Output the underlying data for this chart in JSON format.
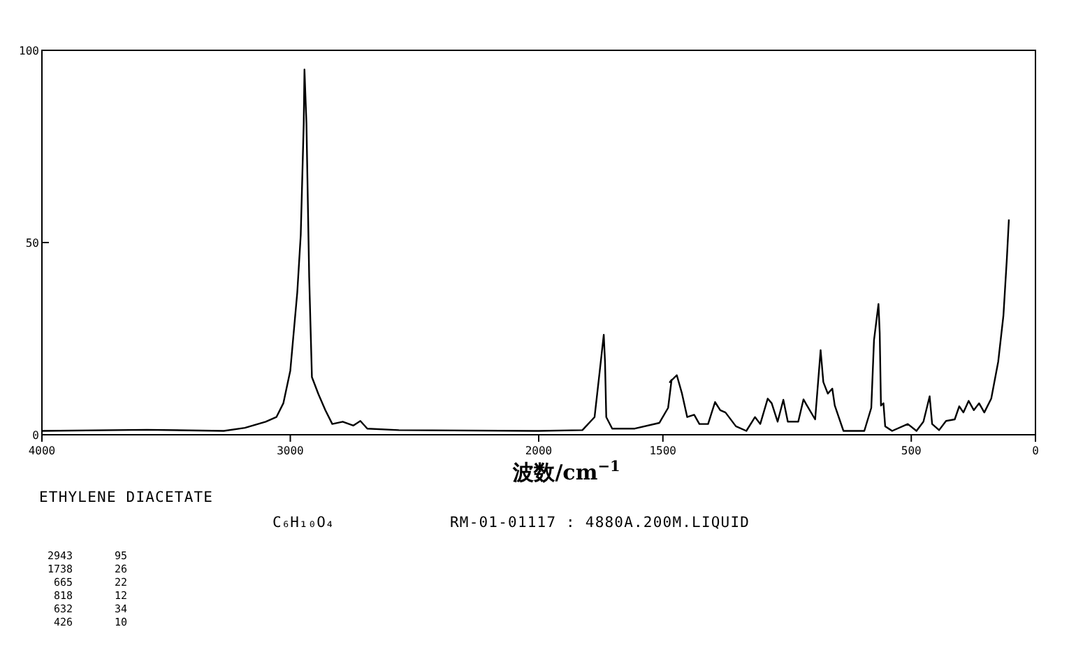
{
  "chart_data": {
    "type": "line",
    "title": "ETHYLENE DIACETATE",
    "subtitle": "C₆H₁₀O₄",
    "xlabel": "波数/cm$^{−1}$",
    "annotations": [
      "RM-01-01117 : 4880A.200M.LIQUID",
      "2943 95",
      "1738 26",
      "665 22",
      "818 12",
      "632 34",
      "426 10"
    ],
    "xlim": [
      4000,
      0
    ],
    "ylim": [
      0,
      100
    ],
    "xticks": [
      4000,
      3000,
      2000,
      1500,
      500,
      0
    ],
    "yticks": [
      0,
      50,
      100
    ],
    "grid": false,
    "marker": "none",
    "line_style": "solid",
    "series": [
      {
        "color": "#000000",
        "x": [
          4000,
          3577,
          3268,
          3183,
          3099,
          3056,
          3028,
          3000,
          2972,
          2958,
          2946,
          2943,
          2935,
          2924,
          2913,
          2887,
          2859,
          2831,
          2789,
          2746,
          2718,
          2690,
          2563,
          2000,
          1824,
          1775,
          1754,
          1738,
          1733,
          1728,
          1704,
          1613,
          1514,
          1479,
          1465,
          1472,
          1444,
          1423,
          1402,
          1374,
          1353,
          1318,
          1290,
          1269,
          1248,
          1206,
          1164,
          1129,
          1108,
          1078,
          1062,
          1038,
          1015,
          997,
          955,
          934,
          920,
          887,
          865,
          854,
          836,
          818,
          808,
          773,
          689,
          661,
          650,
          632,
          627,
          622,
          612,
          605,
          577,
          514,
          479,
          451,
          426,
          416,
          388,
          360,
          325,
          307,
          290,
          269,
          248,
          227,
          206,
          178,
          150,
          129,
          115,
          107
        ],
        "values": [
          1.0,
          1.3,
          1.0,
          1.8,
          3.4,
          4.6,
          8.2,
          16.7,
          37,
          52,
          81,
          95,
          81,
          41,
          15,
          10.6,
          6.4,
          2.8,
          3.4,
          2.4,
          3.6,
          1.6,
          1.2,
          1.0,
          1.2,
          4.6,
          16.7,
          26,
          19,
          4.6,
          1.6,
          1.6,
          3.1,
          7,
          14.3,
          13.7,
          15.5,
          10.7,
          4.6,
          5.2,
          2.8,
          2.8,
          8.5,
          6.4,
          5.8,
          2.2,
          1.0,
          4.6,
          2.8,
          9.4,
          8.2,
          3.4,
          9.1,
          3.4,
          3.4,
          9.2,
          7.6,
          4.0,
          22,
          13.7,
          10.7,
          12,
          7.6,
          1.0,
          1.0,
          7,
          24.6,
          34,
          26.4,
          7.6,
          8.2,
          2.2,
          1.0,
          2.8,
          1.0,
          3.4,
          10,
          2.8,
          1.2,
          3.6,
          4.0,
          7.4,
          5.8,
          8.8,
          6.4,
          8.2,
          5.8,
          9.4,
          19,
          31,
          46,
          56
        ]
      }
    ]
  }
}
